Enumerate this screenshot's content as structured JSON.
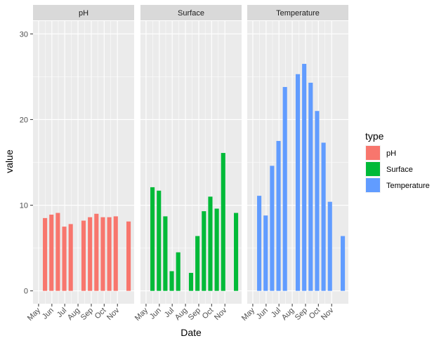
{
  "chart_data": {
    "type": "bar",
    "facet_by": "type",
    "xlabel": "Date",
    "ylabel": "value",
    "ylim": [
      -1.5,
      31.5
    ],
    "y_ticks": [
      0,
      10,
      20,
      30
    ],
    "x_range_days": [
      0,
      206
    ],
    "x_ticks": [
      {
        "label": "May",
        "day": 0
      },
      {
        "label": "Jun",
        "day": 31
      },
      {
        "label": "Jul",
        "day": 61
      },
      {
        "label": "Aug",
        "day": 92
      },
      {
        "label": "Sep",
        "day": 123
      },
      {
        "label": "Oct",
        "day": 153
      },
      {
        "label": "Nov",
        "day": 184
      }
    ],
    "bar_width_days": 10,
    "legend": {
      "title": "type",
      "position": "right",
      "entries": [
        {
          "label": "pH",
          "color": "#F8766D"
        },
        {
          "label": "Surface",
          "color": "#00BA38"
        },
        {
          "label": "Temperature",
          "color": "#619CFF"
        }
      ]
    },
    "panels": [
      {
        "name": "pH",
        "color": "#F8766D",
        "points": [
          {
            "day": 15,
            "value": 8.5
          },
          {
            "day": 30,
            "value": 8.9
          },
          {
            "day": 45,
            "value": 9.1
          },
          {
            "day": 60,
            "value": 7.5
          },
          {
            "day": 75,
            "value": 7.8
          },
          {
            "day": 105,
            "value": 8.2
          },
          {
            "day": 120,
            "value": 8.6
          },
          {
            "day": 135,
            "value": 9.0
          },
          {
            "day": 150,
            "value": 8.6
          },
          {
            "day": 165,
            "value": 8.6
          },
          {
            "day": 180,
            "value": 8.7
          },
          {
            "day": 210,
            "value": 8.1
          }
        ]
      },
      {
        "name": "Surface",
        "color": "#00BA38",
        "points": [
          {
            "day": 15,
            "value": 12.1
          },
          {
            "day": 30,
            "value": 11.7
          },
          {
            "day": 45,
            "value": 8.7
          },
          {
            "day": 60,
            "value": 2.3
          },
          {
            "day": 75,
            "value": 4.5
          },
          {
            "day": 105,
            "value": 2.1
          },
          {
            "day": 120,
            "value": 6.4
          },
          {
            "day": 135,
            "value": 9.3
          },
          {
            "day": 150,
            "value": 11.0
          },
          {
            "day": 165,
            "value": 9.6
          },
          {
            "day": 180,
            "value": 16.1
          },
          {
            "day": 210,
            "value": 9.1
          }
        ]
      },
      {
        "name": "Temperature",
        "color": "#619CFF",
        "points": [
          {
            "day": 15,
            "value": 11.1
          },
          {
            "day": 30,
            "value": 8.8
          },
          {
            "day": 45,
            "value": 14.6
          },
          {
            "day": 60,
            "value": 17.5
          },
          {
            "day": 75,
            "value": 23.8
          },
          {
            "day": 105,
            "value": 25.3
          },
          {
            "day": 120,
            "value": 26.5
          },
          {
            "day": 135,
            "value": 24.3
          },
          {
            "day": 150,
            "value": 21.0
          },
          {
            "day": 165,
            "value": 17.3
          },
          {
            "day": 180,
            "value": 10.4
          },
          {
            "day": 210,
            "value": 6.4
          }
        ]
      }
    ]
  }
}
